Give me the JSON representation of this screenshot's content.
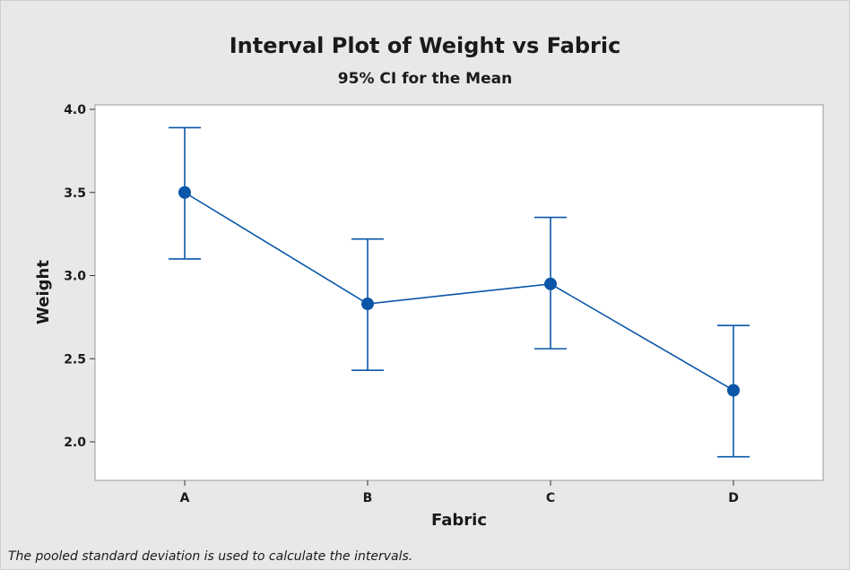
{
  "chart_data": {
    "type": "interval",
    "title": "Interval Plot of Weight vs Fabric",
    "subtitle": "95% CI for the Mean",
    "xlabel": "Fabric",
    "ylabel": "Weight",
    "categories": [
      "A",
      "B",
      "C",
      "D"
    ],
    "means": [
      3.5,
      2.83,
      2.95,
      2.31
    ],
    "ci_lower": [
      3.1,
      2.43,
      2.56,
      1.91
    ],
    "ci_upper": [
      3.89,
      3.22,
      3.35,
      2.7
    ],
    "ylim": [
      1.85,
      4.0
    ],
    "yticks": [
      "2.0",
      "2.5",
      "3.0",
      "3.5",
      "4.0"
    ],
    "grid": false,
    "colors": {
      "series": "#0a56a8",
      "plot_bg": "#ffffff",
      "frame_bg": "#e8e8e8"
    }
  },
  "footnote": "The pooled standard deviation is used to calculate the intervals."
}
